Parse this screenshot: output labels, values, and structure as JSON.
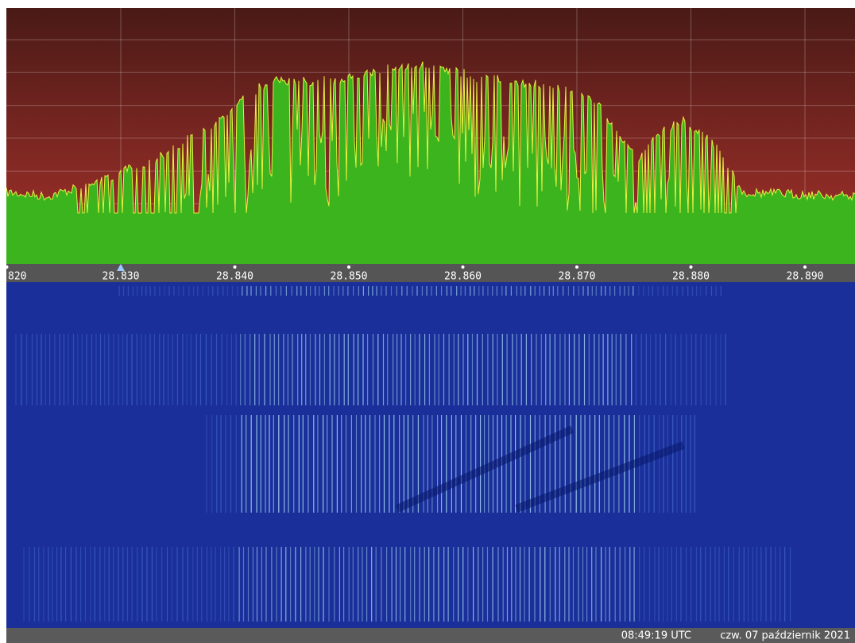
{
  "frequency_axis": {
    "labels": [
      "820",
      "28.830",
      "28.840",
      "28.850",
      "28.860",
      "28.870",
      "28.880",
      "28.890"
    ]
  },
  "status_bar": {
    "time": "08:49:19 UTC",
    "date": "czw. 07 październik 2021"
  }
}
